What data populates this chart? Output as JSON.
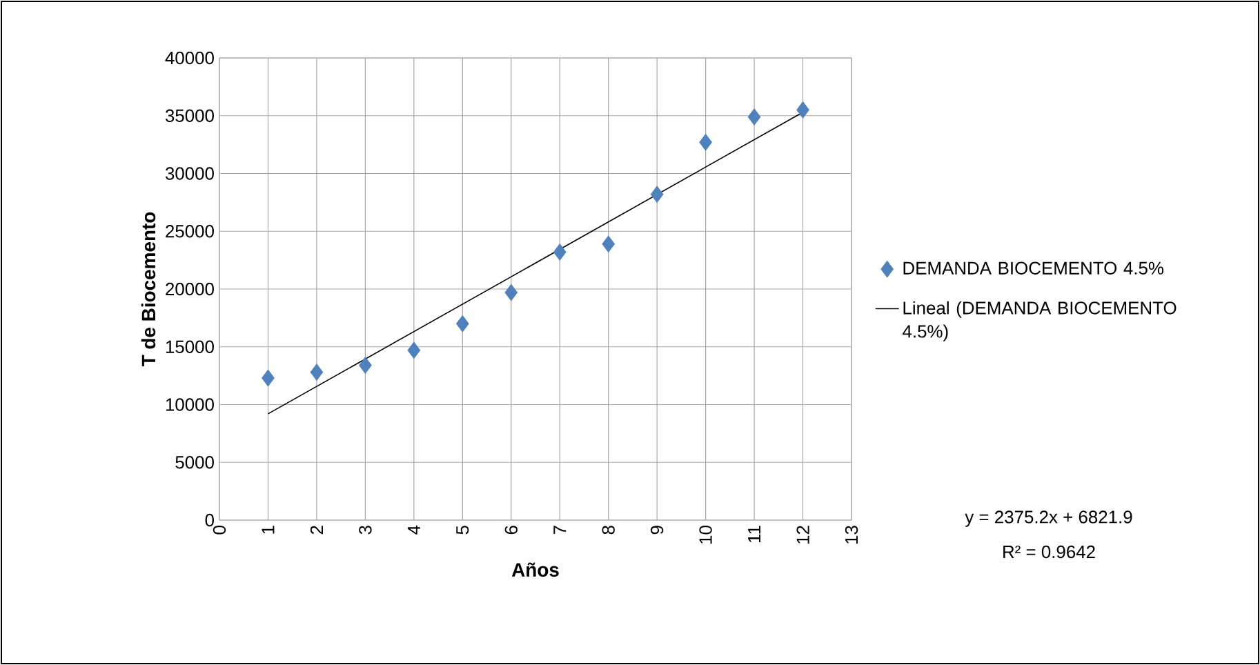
{
  "chart_data": {
    "type": "scatter",
    "xlabel": "Años",
    "ylabel": "T de Biocemento",
    "xlim": [
      0,
      13
    ],
    "xticks": [
      0,
      1,
      2,
      3,
      4,
      5,
      6,
      7,
      8,
      9,
      10,
      11,
      12,
      13
    ],
    "ylim": [
      0,
      40000
    ],
    "yticks": [
      0,
      5000,
      10000,
      15000,
      20000,
      25000,
      30000,
      35000,
      40000
    ],
    "grid": true,
    "legend": "right",
    "marker": "diamond",
    "series": [
      {
        "name": "DEMANDA BIOCEMENTO 4.5%",
        "color": "#4f81bd",
        "x": [
          1,
          2,
          3,
          4,
          5,
          6,
          7,
          8,
          9,
          10,
          11,
          12
        ],
        "values": [
          12300,
          12800,
          13400,
          14700,
          17000,
          19700,
          23200,
          23900,
          28200,
          32700,
          34900,
          35500
        ]
      },
      {
        "name": "Lineal (DEMANDA BIOCEMENTO 4.5%)",
        "type": "line",
        "marker": "none",
        "line_style": "solid",
        "color": "#000000",
        "x": [
          1,
          12
        ],
        "values": [
          9200,
          35300
        ]
      }
    ],
    "annotations": [
      "y = 2375.2x + 6821.9",
      "R² = 0.9642"
    ]
  }
}
